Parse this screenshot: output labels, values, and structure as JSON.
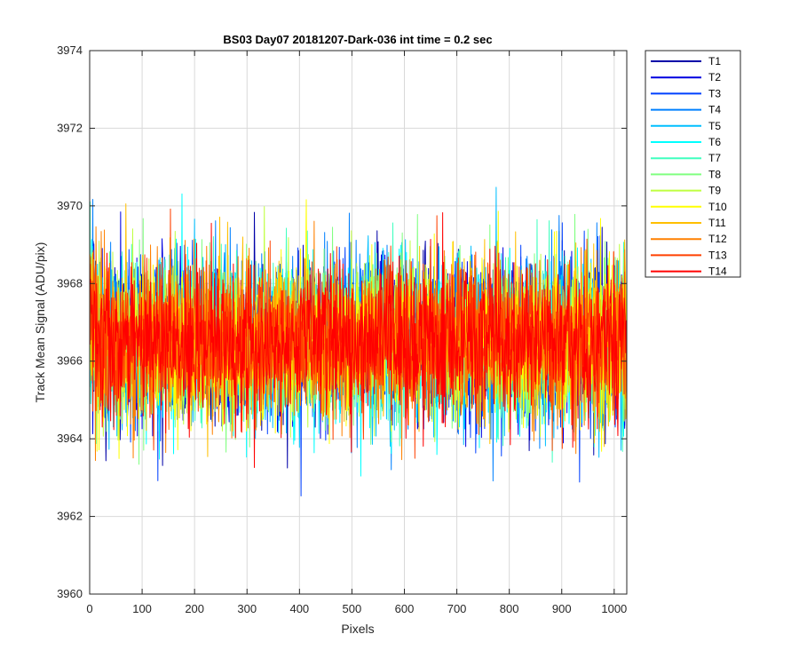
{
  "chart_data": {
    "type": "line",
    "title": "BS03 Day07 20181207-Dark-036 int time = 0.2 sec",
    "xlabel": "Pixels",
    "ylabel": "Track Mean Signal (ADU/pix)",
    "xlim": [
      0,
      1024
    ],
    "ylim": [
      3960,
      3974
    ],
    "xticks": [
      0,
      100,
      200,
      300,
      400,
      500,
      600,
      700,
      800,
      900,
      1000
    ],
    "yticks": [
      3960,
      3962,
      3964,
      3966,
      3968,
      3970,
      3972,
      3974
    ],
    "grid": true,
    "legend_position": "outside-top-right",
    "mean_level": 3966.5,
    "noise_sigma": 1.0,
    "x_range_of_series": [
      1,
      1024
    ],
    "series": [
      {
        "name": "T1",
        "color": "#0000a8"
      },
      {
        "name": "T2",
        "color": "#0000e0"
      },
      {
        "name": "T3",
        "color": "#0040ff"
      },
      {
        "name": "T4",
        "color": "#0080ff"
      },
      {
        "name": "T5",
        "color": "#00bfff"
      },
      {
        "name": "T6",
        "color": "#00ffff"
      },
      {
        "name": "T7",
        "color": "#40ffbf"
      },
      {
        "name": "T8",
        "color": "#80ff80"
      },
      {
        "name": "T9",
        "color": "#bfff40"
      },
      {
        "name": "T10",
        "color": "#ffff00"
      },
      {
        "name": "T11",
        "color": "#ffbf00"
      },
      {
        "name": "T12",
        "color": "#ff8000"
      },
      {
        "name": "T13",
        "color": "#ff4000"
      },
      {
        "name": "T14",
        "color": "#ff0000"
      }
    ]
  }
}
